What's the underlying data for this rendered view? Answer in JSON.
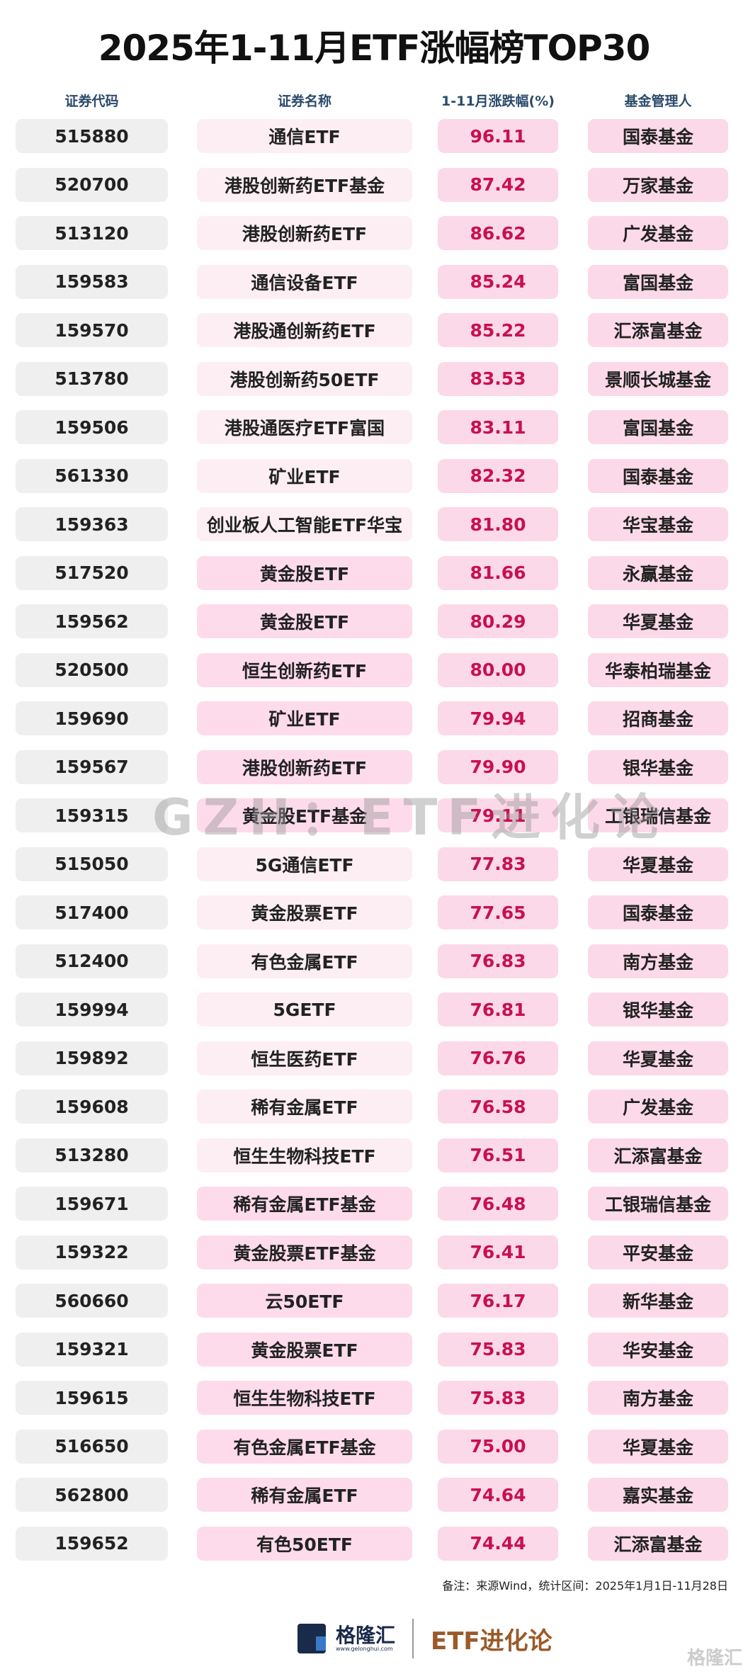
{
  "title": "2025年1-11月ETF涨幅榜TOP30",
  "headers": [
    "证券代码",
    "证券名称",
    "1-11月涨跌幅(%)",
    "基金管理人"
  ],
  "colors": {
    "pct_text": "#c8104f",
    "code_bg": "#efefef",
    "name_bg_light": "#fdeef4",
    "name_bg_deep": "#fddbeb",
    "pink_bg": "#fcd9e8"
  },
  "rows": [
    {
      "code": "515880",
      "name": "通信ETF",
      "pct": "96.11",
      "mgr": "国泰基金",
      "deep": false
    },
    {
      "code": "520700",
      "name": "港股创新药ETF基金",
      "pct": "87.42",
      "mgr": "万家基金",
      "deep": false
    },
    {
      "code": "513120",
      "name": "港股创新药ETF",
      "pct": "86.62",
      "mgr": "广发基金",
      "deep": false
    },
    {
      "code": "159583",
      "name": "通信设备ETF",
      "pct": "85.24",
      "mgr": "富国基金",
      "deep": false
    },
    {
      "code": "159570",
      "name": "港股通创新药ETF",
      "pct": "85.22",
      "mgr": "汇添富基金",
      "deep": false
    },
    {
      "code": "513780",
      "name": "港股创新药50ETF",
      "pct": "83.53",
      "mgr": "景顺长城基金",
      "deep": false
    },
    {
      "code": "159506",
      "name": "港股通医疗ETF富国",
      "pct": "83.11",
      "mgr": "富国基金",
      "deep": false
    },
    {
      "code": "561330",
      "name": "矿业ETF",
      "pct": "82.32",
      "mgr": "国泰基金",
      "deep": false
    },
    {
      "code": "159363",
      "name": "创业板人工智能ETF华宝",
      "pct": "81.80",
      "mgr": "华宝基金",
      "deep": false
    },
    {
      "code": "517520",
      "name": "黄金股ETF",
      "pct": "81.66",
      "mgr": "永赢基金",
      "deep": true
    },
    {
      "code": "159562",
      "name": "黄金股ETF",
      "pct": "80.29",
      "mgr": "华夏基金",
      "deep": true
    },
    {
      "code": "520500",
      "name": "恒生创新药ETF",
      "pct": "80.00",
      "mgr": "华泰柏瑞基金",
      "deep": true
    },
    {
      "code": "159690",
      "name": "矿业ETF",
      "pct": "79.94",
      "mgr": "招商基金",
      "deep": true
    },
    {
      "code": "159567",
      "name": "港股创新药ETF",
      "pct": "79.90",
      "mgr": "银华基金",
      "deep": true
    },
    {
      "code": "159315",
      "name": "黄金股ETF基金",
      "pct": "79.11",
      "mgr": "工银瑞信基金",
      "deep": true
    },
    {
      "code": "515050",
      "name": "5G通信ETF",
      "pct": "77.83",
      "mgr": "华夏基金",
      "deep": false
    },
    {
      "code": "517400",
      "name": "黄金股票ETF",
      "pct": "77.65",
      "mgr": "国泰基金",
      "deep": false
    },
    {
      "code": "512400",
      "name": "有色金属ETF",
      "pct": "76.83",
      "mgr": "南方基金",
      "deep": false
    },
    {
      "code": "159994",
      "name": "5GETF",
      "pct": "76.81",
      "mgr": "银华基金",
      "deep": false
    },
    {
      "code": "159892",
      "name": "恒生医药ETF",
      "pct": "76.76",
      "mgr": "华夏基金",
      "deep": false
    },
    {
      "code": "159608",
      "name": "稀有金属ETF",
      "pct": "76.58",
      "mgr": "广发基金",
      "deep": false
    },
    {
      "code": "513280",
      "name": "恒生生物科技ETF",
      "pct": "76.51",
      "mgr": "汇添富基金",
      "deep": false
    },
    {
      "code": "159671",
      "name": "稀有金属ETF基金",
      "pct": "76.48",
      "mgr": "工银瑞信基金",
      "deep": true
    },
    {
      "code": "159322",
      "name": "黄金股票ETF基金",
      "pct": "76.41",
      "mgr": "平安基金",
      "deep": true
    },
    {
      "code": "560660",
      "name": "云50ETF",
      "pct": "76.17",
      "mgr": "新华基金",
      "deep": true
    },
    {
      "code": "159321",
      "name": "黄金股票ETF",
      "pct": "75.83",
      "mgr": "华安基金",
      "deep": true
    },
    {
      "code": "159615",
      "name": "恒生生物科技ETF",
      "pct": "75.83",
      "mgr": "南方基金",
      "deep": true
    },
    {
      "code": "516650",
      "name": "有色金属ETF基金",
      "pct": "75.00",
      "mgr": "华夏基金",
      "deep": true
    },
    {
      "code": "562800",
      "name": "稀有金属ETF",
      "pct": "74.64",
      "mgr": "嘉实基金",
      "deep": true
    },
    {
      "code": "159652",
      "name": "有色50ETF",
      "pct": "74.44",
      "mgr": "汇添富基金",
      "deep": true
    }
  ],
  "watermark": "GZH：ETF进化论",
  "note": "备注：来源Wind，统计区间：2025年1月1日-11月28日",
  "footer": {
    "brand": "格隆汇",
    "site": "www.gelonghui.com",
    "channel": "ETF进化论",
    "corner": "格隆汇"
  }
}
